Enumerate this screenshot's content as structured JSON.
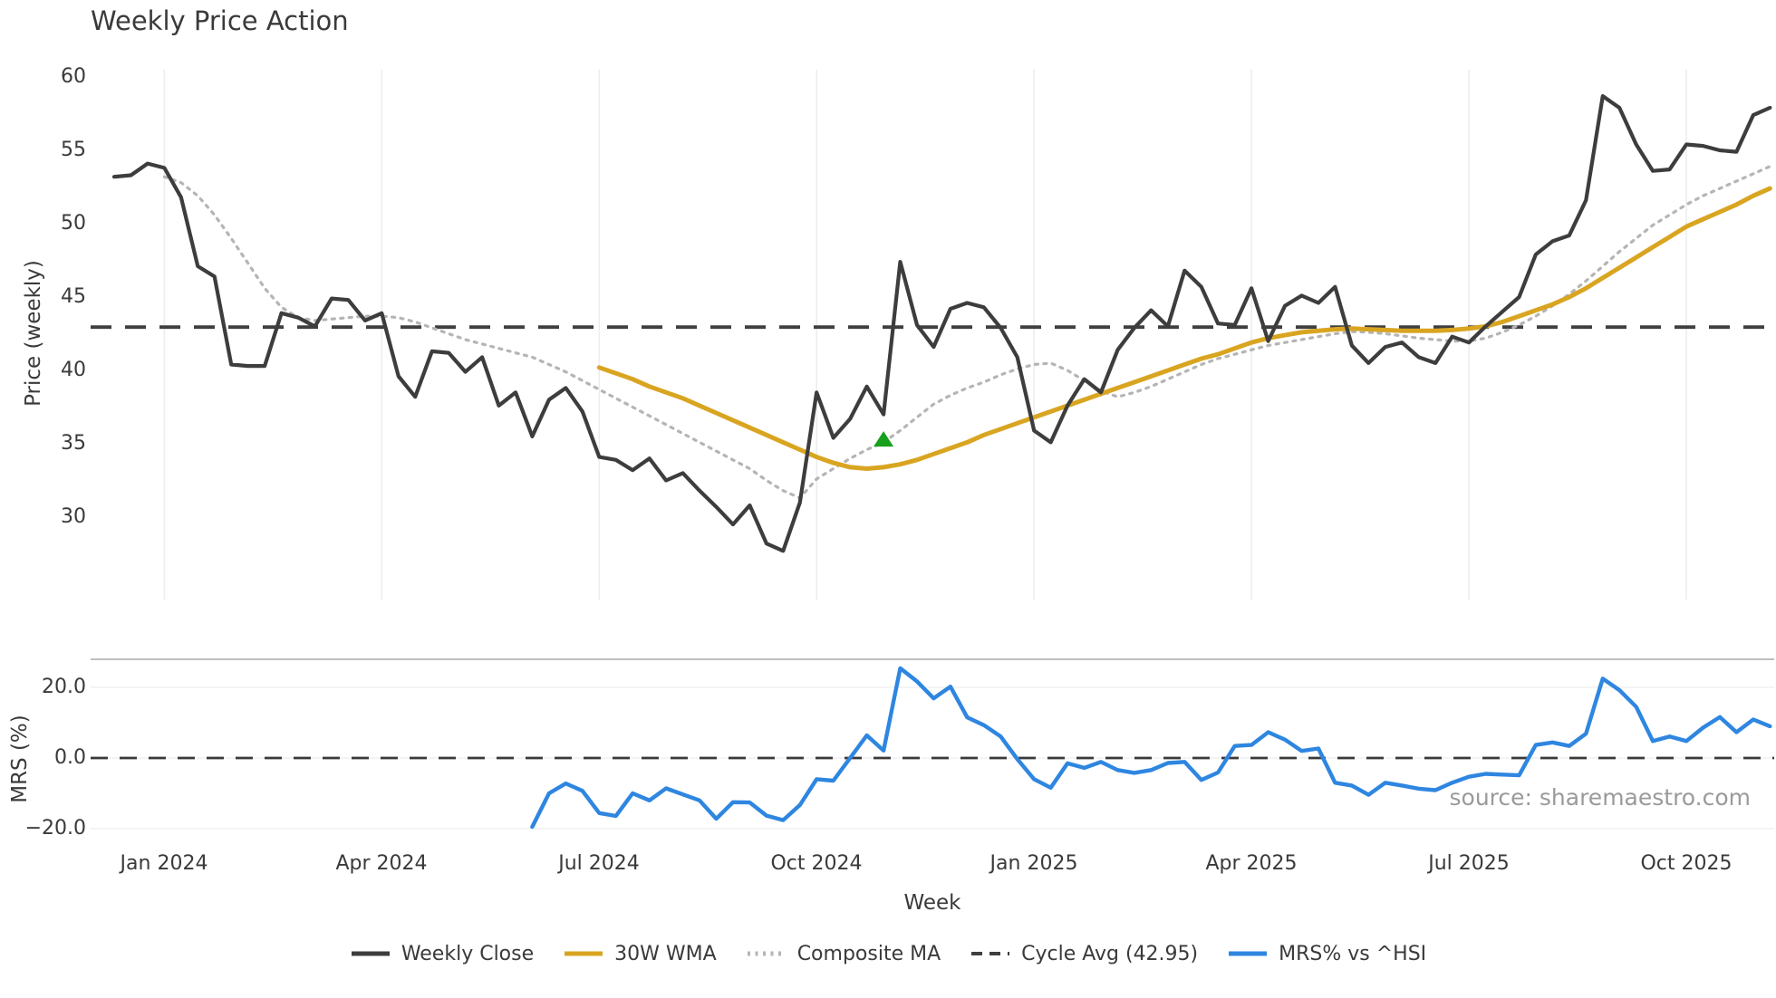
{
  "title": "Weekly Price Action",
  "source_text": "source: sharemaestro.com",
  "top_panel": {
    "ylabel": "Price (weekly)",
    "yticks": [
      {
        "label": "60",
        "value": 60
      },
      {
        "label": "55",
        "value": 55
      },
      {
        "label": "50",
        "value": 50
      },
      {
        "label": "45",
        "value": 45
      },
      {
        "label": "40",
        "value": 40
      },
      {
        "label": "35",
        "value": 35
      },
      {
        "label": "30",
        "value": 30
      }
    ]
  },
  "bottom_panel": {
    "ylabel": "MRS (%)",
    "yticks": [
      {
        "label": "20.0",
        "value": 20
      },
      {
        "label": "0.0",
        "value": 0
      },
      {
        "label": "−20.0",
        "value": -20
      }
    ]
  },
  "x_axis": {
    "label": "Week",
    "ticks": [
      {
        "label": "Jan 2024",
        "week": 3
      },
      {
        "label": "Apr 2024",
        "week": 16
      },
      {
        "label": "Jul 2024",
        "week": 29
      },
      {
        "label": "Oct 2024",
        "week": 42
      },
      {
        "label": "Jan 2025",
        "week": 55
      },
      {
        "label": "Apr 2025",
        "week": 68
      },
      {
        "label": "Jul 2025",
        "week": 81
      },
      {
        "label": "Oct 2025",
        "week": 94
      }
    ]
  },
  "legend": {
    "items": [
      {
        "label": "Weekly Close",
        "color": "#3d3d3d",
        "style": "solid"
      },
      {
        "label": "30W WMA",
        "color": "#d9a521",
        "style": "solid"
      },
      {
        "label": "Composite MA",
        "color": "#b5b5b5",
        "style": "dotted"
      },
      {
        "label": "Cycle Avg (42.95)",
        "color": "#3f3f3f",
        "style": "dashed"
      },
      {
        "label": "MRS% vs ^HSI",
        "color": "#2e86e0",
        "style": "solid"
      }
    ]
  },
  "colors": {
    "weekly_close": "#3d3d3d",
    "wma_30w": "#d9a521",
    "composite_ma": "#b5b5b5",
    "cycle_avg": "#3f3f3f",
    "mrs": "#2e86e0",
    "signal_marker": "#17a11c",
    "grid": "#ecedf2",
    "panel_border": "#a9a9a9",
    "tick_text": "#3a3a3a",
    "source_text": "#9a9a9a"
  },
  "chart_data": [
    {
      "type": "line",
      "title": "Weekly Price Action",
      "xlabel": "Week",
      "ylabel": "Price (weekly)",
      "x_unit": "weekly index, week 0 = 2023-12-11, 100 weeks through 2025-11-03",
      "ylim": [
        27,
        60.5
      ],
      "grid": "vertical-quarterly",
      "legend_position": "bottom-center",
      "xtick_weeks": [
        3,
        16,
        29,
        42,
        55,
        68,
        81,
        94
      ],
      "xtick_labels": [
        "Jan 2024",
        "Apr 2024",
        "Jul 2024",
        "Oct 2024",
        "Jan 2025",
        "Apr 2025",
        "Jul 2025",
        "Oct 2025"
      ],
      "series": [
        {
          "name": "Weekly Close",
          "style": "solid",
          "color": "#3d3d3d",
          "width": 4.2,
          "start_index": 0,
          "values": [
            53.2,
            53.3,
            54.1,
            53.8,
            51.8,
            47.1,
            46.4,
            40.4,
            40.3,
            40.3,
            43.9,
            43.6,
            43.0,
            44.9,
            44.8,
            43.4,
            43.9,
            39.6,
            38.2,
            41.3,
            41.2,
            39.9,
            40.9,
            37.6,
            38.5,
            35.5,
            38.0,
            38.8,
            37.2,
            34.1,
            33.9,
            33.2,
            34.0,
            32.5,
            33.0,
            31.8,
            30.7,
            29.5,
            30.8,
            28.2,
            27.7,
            31.0,
            38.5,
            35.4,
            36.7,
            38.9,
            37.0,
            47.4,
            43.1,
            41.6,
            44.2,
            44.6,
            44.3,
            42.9,
            40.9,
            35.9,
            35.1,
            37.6,
            39.4,
            38.5,
            41.4,
            42.9,
            44.1,
            43.0,
            46.8,
            45.7,
            43.2,
            43.1,
            45.6,
            42.0,
            44.4,
            45.1,
            44.6,
            45.7,
            41.7,
            40.5,
            41.6,
            41.9,
            40.9,
            40.5,
            42.3,
            41.9,
            43.0,
            44.0,
            45.0,
            47.9,
            48.8,
            49.2,
            51.6,
            58.7,
            57.9,
            55.4,
            53.6,
            53.7,
            55.4,
            55.3,
            55.0,
            54.9,
            57.4,
            57.9
          ]
        },
        {
          "name": "30W WMA",
          "style": "solid",
          "color": "#d9a521",
          "width": 5,
          "start_index": 29,
          "values": [
            40.2,
            39.8,
            39.4,
            38.9,
            38.5,
            38.1,
            37.6,
            37.1,
            36.6,
            36.1,
            35.6,
            35.1,
            34.6,
            34.1,
            33.7,
            33.4,
            33.3,
            33.4,
            33.6,
            33.9,
            34.3,
            34.7,
            35.1,
            35.6,
            36.0,
            36.4,
            36.8,
            37.2,
            37.6,
            38.0,
            38.4,
            38.8,
            39.2,
            39.6,
            40.0,
            40.4,
            40.8,
            41.1,
            41.5,
            41.9,
            42.2,
            42.4,
            42.6,
            42.7,
            42.8,
            42.85,
            42.8,
            42.75,
            42.7,
            42.7,
            42.7,
            42.75,
            42.85,
            43.0,
            43.3,
            43.7,
            44.1,
            44.5,
            45.0,
            45.6,
            46.3,
            47.0,
            47.7,
            48.4,
            49.1,
            49.8,
            50.3,
            50.8,
            51.3,
            51.9,
            52.4
          ]
        },
        {
          "name": "Composite MA",
          "style": "dotted",
          "color": "#b5b5b5",
          "width": 3.2,
          "start_index": 3,
          "values": [
            53.2,
            52.8,
            51.9,
            50.6,
            49.0,
            47.3,
            45.6,
            44.3,
            43.6,
            43.4,
            43.5,
            43.6,
            43.7,
            43.7,
            43.6,
            43.3,
            42.9,
            42.5,
            42.1,
            41.8,
            41.5,
            41.2,
            40.9,
            40.4,
            39.9,
            39.3,
            38.7,
            38.1,
            37.5,
            36.9,
            36.3,
            35.7,
            35.1,
            34.5,
            33.9,
            33.3,
            32.5,
            31.8,
            31.3,
            32.6,
            33.3,
            34.0,
            34.6,
            35.1,
            35.9,
            36.8,
            37.7,
            38.3,
            38.8,
            39.2,
            39.7,
            40.1,
            40.4,
            40.5,
            40.0,
            39.3,
            38.6,
            38.2,
            38.5,
            38.9,
            39.4,
            39.9,
            40.4,
            40.8,
            41.1,
            41.4,
            41.7,
            41.9,
            42.1,
            42.3,
            42.5,
            42.65,
            42.6,
            42.5,
            42.35,
            42.2,
            42.1,
            42.0,
            42.0,
            42.2,
            42.6,
            43.1,
            43.7,
            44.4,
            45.2,
            46.1,
            47.1,
            48.1,
            49.0,
            49.9,
            50.6,
            51.3,
            51.9,
            52.4,
            52.9,
            53.4,
            53.9
          ]
        },
        {
          "name": "Cycle Avg",
          "style": "dashed",
          "color": "#3f3f3f",
          "width": 3.8,
          "constant": 42.95
        }
      ],
      "markers": [
        {
          "type": "triangle-up",
          "color": "#17a11c",
          "week_index": 46,
          "value": 35.3
        }
      ]
    },
    {
      "type": "line",
      "xlabel": "Week",
      "ylabel": "MRS (%)",
      "ylim": [
        -22,
        28
      ],
      "grid": "horizontal",
      "series": [
        {
          "name": "MRS% vs ^HSI",
          "style": "solid",
          "color": "#2e86e0",
          "width": 4.4,
          "start_index": 25,
          "values": [
            -19.5,
            -10.0,
            -7.2,
            -9.3,
            -15.6,
            -16.4,
            -10.0,
            -12.0,
            -8.6,
            -10.3,
            -12.0,
            -17.2,
            -12.5,
            -12.6,
            -16.3,
            -17.6,
            -13.3,
            -6.0,
            -6.4,
            0.0,
            6.4,
            2.1,
            25.4,
            21.7,
            16.9,
            20.2,
            11.5,
            9.3,
            6.1,
            -0.3,
            -6.0,
            -8.4,
            -1.5,
            -2.8,
            -1.1,
            -3.4,
            -4.2,
            -3.4,
            -1.4,
            -1.1,
            -6.2,
            -4.1,
            3.4,
            3.7,
            7.3,
            5.2,
            2.0,
            2.7,
            -7.0,
            -7.8,
            -10.4,
            -7.0,
            -7.8,
            -8.7,
            -9.1,
            -7.0,
            -5.3,
            -4.5,
            -4.7,
            -4.9,
            3.7,
            4.4,
            3.4,
            6.9,
            22.5,
            19.2,
            14.5,
            4.8,
            6.1,
            4.8,
            8.6,
            11.6,
            7.3,
            10.9,
            9.0
          ]
        },
        {
          "name": "Zero line",
          "style": "dashed",
          "color": "#3a3a3a",
          "width": 2.8,
          "constant": 0
        }
      ]
    }
  ]
}
